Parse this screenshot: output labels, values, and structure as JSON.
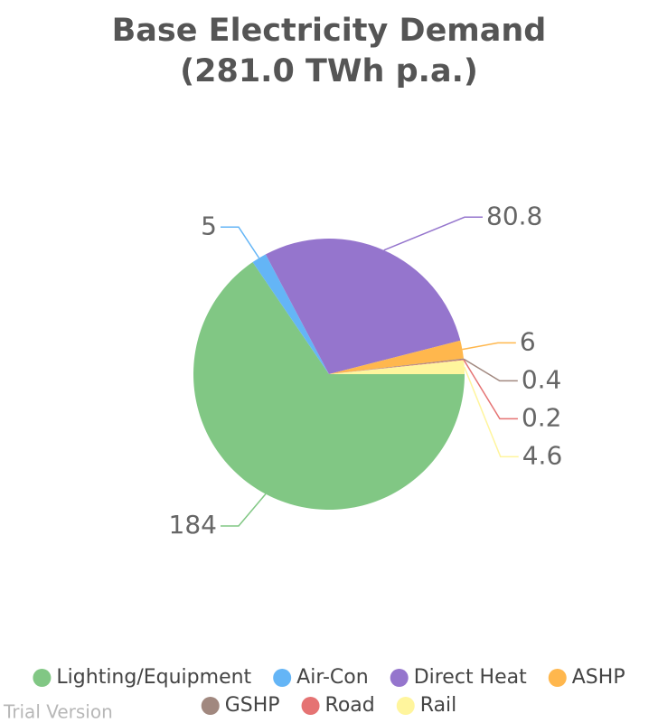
{
  "chart_data": {
    "type": "pie",
    "title": [
      "Base Electricity Demand",
      "(281.0 TWh p.a.)"
    ],
    "categories": [
      "Lighting/Equipment",
      "Air-Con",
      "Direct Heat",
      "ASHP",
      "GSHP",
      "Road",
      "Rail"
    ],
    "values": [
      184,
      5,
      80.8,
      6,
      0.4,
      0.2,
      4.6
    ],
    "colors": [
      "#81c784",
      "#64b5f6",
      "#9575cd",
      "#ffb74d",
      "#a1887f",
      "#e57373",
      "#fff59d"
    ],
    "legend": "bottom",
    "watermark": "Trial Version"
  }
}
